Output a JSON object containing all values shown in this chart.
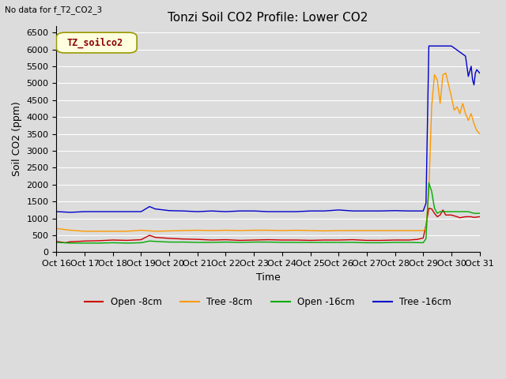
{
  "title": "Tonzi Soil CO2 Profile: Lower CO2",
  "subtitle": "No data for f_T2_CO2_3",
  "ylabel": "Soil CO2 (ppm)",
  "xlabel": "Time",
  "legend_label": "TZ_soilco2",
  "ylim": [
    0,
    6700
  ],
  "yticks": [
    0,
    500,
    1000,
    1500,
    2000,
    2500,
    3000,
    3500,
    4000,
    4500,
    5000,
    5500,
    6000,
    6500
  ],
  "xtick_labels": [
    "Oct 16",
    "Oct 17",
    "Oct 18",
    "Oct 19",
    "Oct 20",
    "Oct 21",
    "Oct 22",
    "Oct 23",
    "Oct 24",
    "Oct 25",
    "Oct 26",
    "Oct 27",
    "Oct 28",
    "Oct 29",
    "Oct 30",
    "Oct 31"
  ],
  "series": {
    "open_8cm": {
      "color": "#cc0000",
      "label": "Open -8cm",
      "x": [
        0,
        0.3,
        0.5,
        1,
        1.5,
        2,
        2.5,
        3,
        3.3,
        3.5,
        4,
        4.5,
        5,
        5.5,
        6,
        6.5,
        7,
        7.5,
        8,
        8.5,
        9,
        9.5,
        10,
        10.5,
        11,
        11.5,
        12,
        12.5,
        12.8,
        13,
        13.1,
        13.2,
        13.3,
        13.4,
        13.5,
        13.6,
        13.7,
        13.8,
        14,
        14.2,
        14.3,
        14.5,
        14.7,
        14.8,
        15
      ],
      "y": [
        320,
        280,
        310,
        330,
        340,
        360,
        350,
        370,
        500,
        440,
        410,
        390,
        380,
        360,
        370,
        350,
        360,
        370,
        360,
        360,
        350,
        360,
        360,
        370,
        350,
        350,
        360,
        360,
        380,
        420,
        800,
        1300,
        1280,
        1150,
        1050,
        1100,
        1250,
        1100,
        1100,
        1050,
        1020,
        1050,
        1050,
        1030,
        1050
      ]
    },
    "tree_8cm": {
      "color": "#ff9900",
      "label": "Tree -8cm",
      "x": [
        0,
        0.5,
        1,
        1.5,
        2,
        2.5,
        3,
        3.5,
        4,
        4.5,
        5,
        5.5,
        6,
        6.5,
        7,
        7.5,
        8,
        8.5,
        9,
        9.5,
        10,
        10.5,
        11,
        11.5,
        12,
        12.5,
        13,
        13.1,
        13.2,
        13.3,
        13.4,
        13.5,
        13.6,
        13.7,
        13.8,
        14,
        14.1,
        14.2,
        14.3,
        14.4,
        14.5,
        14.6,
        14.7,
        14.8,
        14.9,
        15
      ],
      "y": [
        700,
        650,
        620,
        620,
        620,
        620,
        650,
        620,
        630,
        640,
        650,
        640,
        650,
        640,
        650,
        650,
        640,
        650,
        640,
        630,
        640,
        640,
        640,
        640,
        640,
        640,
        640,
        700,
        1800,
        4300,
        5250,
        5100,
        4400,
        5250,
        5300,
        4600,
        4200,
        4300,
        4100,
        4400,
        4100,
        3900,
        4100,
        3800,
        3600,
        3500
      ]
    },
    "open_16cm": {
      "color": "#00aa00",
      "label": "Open -16cm",
      "x": [
        0,
        0.5,
        1,
        1.5,
        2,
        2.5,
        3,
        3.3,
        3.5,
        4,
        4.5,
        5,
        5.5,
        6,
        6.5,
        7,
        7.5,
        8,
        8.5,
        9,
        9.5,
        10,
        10.5,
        11,
        11.5,
        12,
        12.5,
        13,
        13.1,
        13.2,
        13.3,
        13.4,
        13.5,
        13.6,
        13.7,
        14,
        14.2,
        14.4,
        14.6,
        14.8,
        15
      ],
      "y": [
        290,
        270,
        270,
        270,
        280,
        270,
        280,
        330,
        320,
        300,
        300,
        290,
        290,
        300,
        290,
        300,
        300,
        290,
        290,
        290,
        290,
        290,
        290,
        280,
        280,
        290,
        290,
        280,
        400,
        2050,
        1800,
        1300,
        1150,
        1200,
        1200,
        1200,
        1200,
        1200,
        1200,
        1150,
        1150
      ]
    },
    "tree_16cm": {
      "color": "#0000cc",
      "label": "Tree -16cm",
      "x": [
        0,
        0.5,
        1,
        1.5,
        2,
        2.5,
        3,
        3.3,
        3.5,
        4,
        4.5,
        5,
        5.5,
        6,
        6.5,
        7,
        7.5,
        8,
        8.5,
        9,
        9.5,
        10,
        10.5,
        11,
        11.5,
        12,
        12.5,
        13,
        13.1,
        13.2,
        13.3,
        13.35,
        13.4,
        13.5,
        13.55,
        14,
        14.5,
        14.6,
        14.7,
        14.75,
        14.8,
        14.85,
        14.9,
        15
      ],
      "y": [
        1200,
        1180,
        1200,
        1200,
        1200,
        1200,
        1200,
        1350,
        1280,
        1230,
        1220,
        1200,
        1220,
        1200,
        1220,
        1220,
        1200,
        1200,
        1200,
        1220,
        1220,
        1250,
        1220,
        1220,
        1220,
        1230,
        1220,
        1220,
        1450,
        6100,
        6100,
        6100,
        6100,
        6100,
        6100,
        6100,
        5800,
        5200,
        5500,
        5100,
        4950,
        5300,
        5400,
        5300
      ]
    }
  },
  "bg_color": "#dcdcdc",
  "plot_bg_color": "#dcdcdc",
  "title_fontsize": 11,
  "axis_fontsize": 9,
  "tick_fontsize": 8
}
